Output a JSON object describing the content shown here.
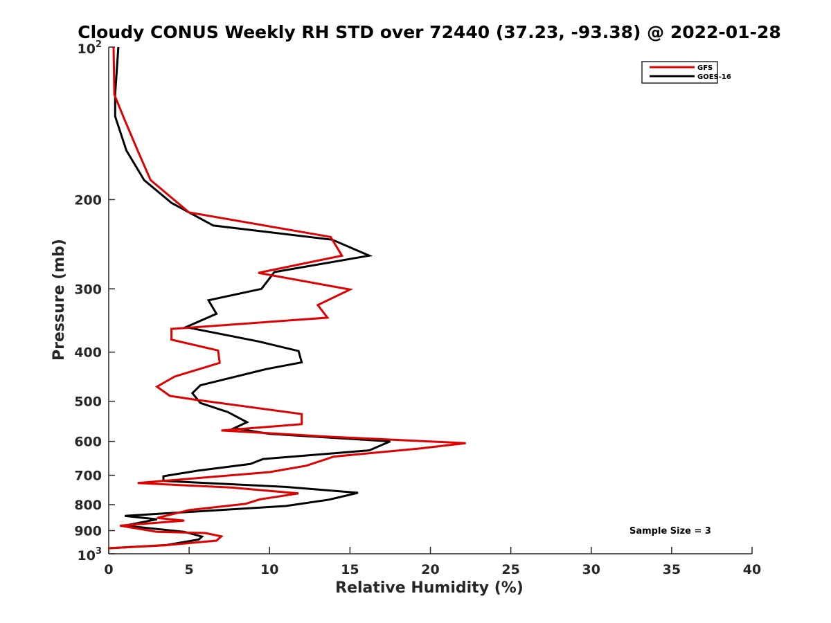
{
  "chart_data": {
    "type": "line",
    "title": "Cloudy CONUS Weekly RH STD over 72440 (37.23, -93.38) @ 2022-01-28",
    "xlabel": "Relative Humidity (%)",
    "ylabel": "Pressure (mb)",
    "xlim": [
      0,
      40
    ],
    "ylim": [
      100,
      1000
    ],
    "y_scale": "log",
    "y_reversed": true,
    "grid": false,
    "legend_placement": "top-right",
    "x_ticks": [
      "0",
      "5",
      "10",
      "15",
      "20",
      "25",
      "30",
      "35",
      "40"
    ],
    "y_ticks": [
      {
        "value": 100,
        "base": "10",
        "exp": "2"
      },
      {
        "value": 200,
        "label": "200"
      },
      {
        "value": 300,
        "label": "300"
      },
      {
        "value": 400,
        "label": "400"
      },
      {
        "value": 500,
        "label": "500"
      },
      {
        "value": 600,
        "label": "600"
      },
      {
        "value": 700,
        "label": "700"
      },
      {
        "value": 800,
        "label": "800"
      },
      {
        "value": 900,
        "label": "900"
      },
      {
        "value": 1000,
        "base": "10",
        "exp": "3"
      }
    ],
    "series": [
      {
        "name": "GFS",
        "color": "#e00000",
        "points": [
          [
            0.3,
            100
          ],
          [
            0.35,
            124
          ],
          [
            0.9,
            137
          ],
          [
            1.8,
            160
          ],
          [
            2.6,
            183
          ],
          [
            5.0,
            212
          ],
          [
            13.8,
            237
          ],
          [
            14.5,
            258
          ],
          [
            9.3,
            279
          ],
          [
            15.0,
            301
          ],
          [
            13.0,
            323
          ],
          [
            13.6,
            342
          ],
          [
            3.9,
            360
          ],
          [
            3.9,
            378
          ],
          [
            6.8,
            397
          ],
          [
            6.9,
            420
          ],
          [
            4.1,
            447
          ],
          [
            3.0,
            468
          ],
          [
            3.8,
            488
          ],
          [
            5.3,
            496
          ],
          [
            12.0,
            530
          ],
          [
            12.0,
            555
          ],
          [
            7.0,
            571
          ],
          [
            14.0,
            588
          ],
          [
            22.2,
            605
          ],
          [
            19.3,
            620
          ],
          [
            14.0,
            643
          ],
          [
            12.3,
            670
          ],
          [
            10.0,
            690
          ],
          [
            1.8,
            725
          ],
          [
            7.6,
            740
          ],
          [
            11.8,
            760
          ],
          [
            9.4,
            781
          ],
          [
            8.5,
            797
          ],
          [
            5.0,
            820
          ],
          [
            3.0,
            850
          ],
          [
            4.7,
            860
          ],
          [
            0.7,
            880
          ],
          [
            3.0,
            905
          ],
          [
            6.0,
            910
          ],
          [
            7.0,
            924
          ],
          [
            6.7,
            942
          ],
          [
            3.5,
            962
          ],
          [
            0.0,
            975
          ]
        ]
      },
      {
        "name": "GOES-16",
        "color": "#000000",
        "points": [
          [
            0.6,
            100
          ],
          [
            0.4,
            124
          ],
          [
            0.4,
            137
          ],
          [
            1.1,
            160
          ],
          [
            2.2,
            183
          ],
          [
            3.9,
            203
          ],
          [
            6.5,
            225
          ],
          [
            13.9,
            240
          ],
          [
            16.2,
            258
          ],
          [
            10.3,
            278
          ],
          [
            9.5,
            300
          ],
          [
            6.2,
            316
          ],
          [
            6.7,
            336
          ],
          [
            4.8,
            357
          ],
          [
            9.3,
            381
          ],
          [
            11.8,
            398
          ],
          [
            12.0,
            419
          ],
          [
            9.8,
            432
          ],
          [
            5.7,
            465
          ],
          [
            5.2,
            482
          ],
          [
            5.7,
            504
          ],
          [
            7.4,
            525
          ],
          [
            8.6,
            550
          ],
          [
            7.8,
            565
          ],
          [
            10.0,
            580
          ],
          [
            17.5,
            600
          ],
          [
            16.2,
            625
          ],
          [
            9.6,
            650
          ],
          [
            8.8,
            665
          ],
          [
            5.6,
            685
          ],
          [
            3.4,
            703
          ],
          [
            3.4,
            718
          ],
          [
            11.0,
            738
          ],
          [
            15.5,
            758
          ],
          [
            13.7,
            782
          ],
          [
            11.0,
            805
          ],
          [
            7.4,
            818
          ],
          [
            1.0,
            842
          ],
          [
            3.0,
            855
          ],
          [
            1.0,
            880
          ],
          [
            4.7,
            905
          ],
          [
            5.8,
            925
          ],
          [
            5.6,
            937
          ],
          [
            3.6,
            961
          ],
          [
            0.0,
            975
          ]
        ]
      }
    ],
    "annotations": [
      {
        "text": "Sample Size = 3"
      }
    ]
  }
}
